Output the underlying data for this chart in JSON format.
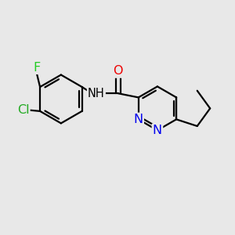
{
  "background_color": "#e8e8e8",
  "bond_color": "#000000",
  "atom_colors": {
    "C": "#000000",
    "N": "#0000ee",
    "O": "#ee0000",
    "F": "#22cc22",
    "Cl": "#22aa22",
    "H": "#000000"
  },
  "figsize": [
    3.0,
    3.0
  ],
  "dpi": 100,
  "xlim": [
    0,
    10
  ],
  "ylim": [
    0,
    10
  ]
}
